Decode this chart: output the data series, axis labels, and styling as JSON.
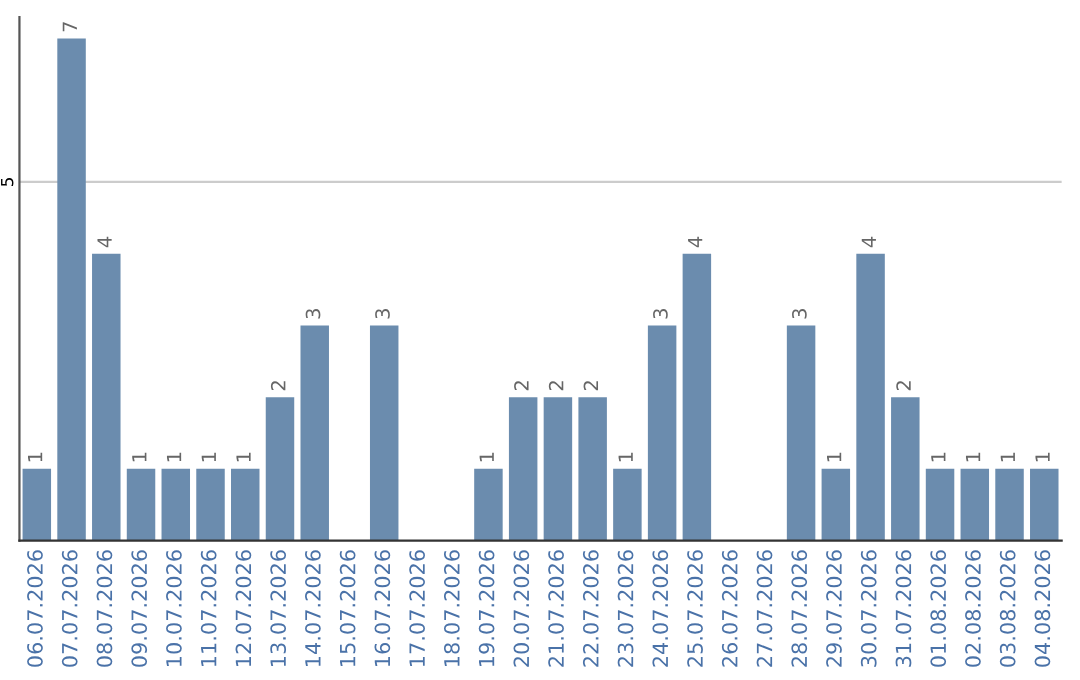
{
  "chart_data": {
    "type": "bar",
    "categories": [
      "06.07.2026",
      "07.07.2026",
      "08.07.2026",
      "09.07.2026",
      "10.07.2026",
      "11.07.2026",
      "12.07.2026",
      "13.07.2026",
      "14.07.2026",
      "15.07.2026",
      "16.07.2026",
      "17.07.2026",
      "18.07.2026",
      "19.07.2026",
      "20.07.2026",
      "21.07.2026",
      "22.07.2026",
      "23.07.2026",
      "24.07.2026",
      "25.07.2026",
      "26.07.2026",
      "27.07.2026",
      "28.07.2026",
      "29.07.2026",
      "30.07.2026",
      "31.07.2026",
      "01.08.2026",
      "02.08.2026",
      "03.08.2026",
      "04.08.2026"
    ],
    "values": [
      1,
      7,
      4,
      1,
      1,
      1,
      1,
      2,
      3,
      null,
      3,
      null,
      null,
      1,
      2,
      2,
      2,
      1,
      3,
      4,
      null,
      null,
      3,
      1,
      4,
      2,
      1,
      1,
      1,
      1
    ],
    "color": "#6b8cae",
    "ylim": [
      0,
      7.3
    ],
    "yticks": [
      5
    ],
    "grid": "y",
    "data_labels": true
  }
}
